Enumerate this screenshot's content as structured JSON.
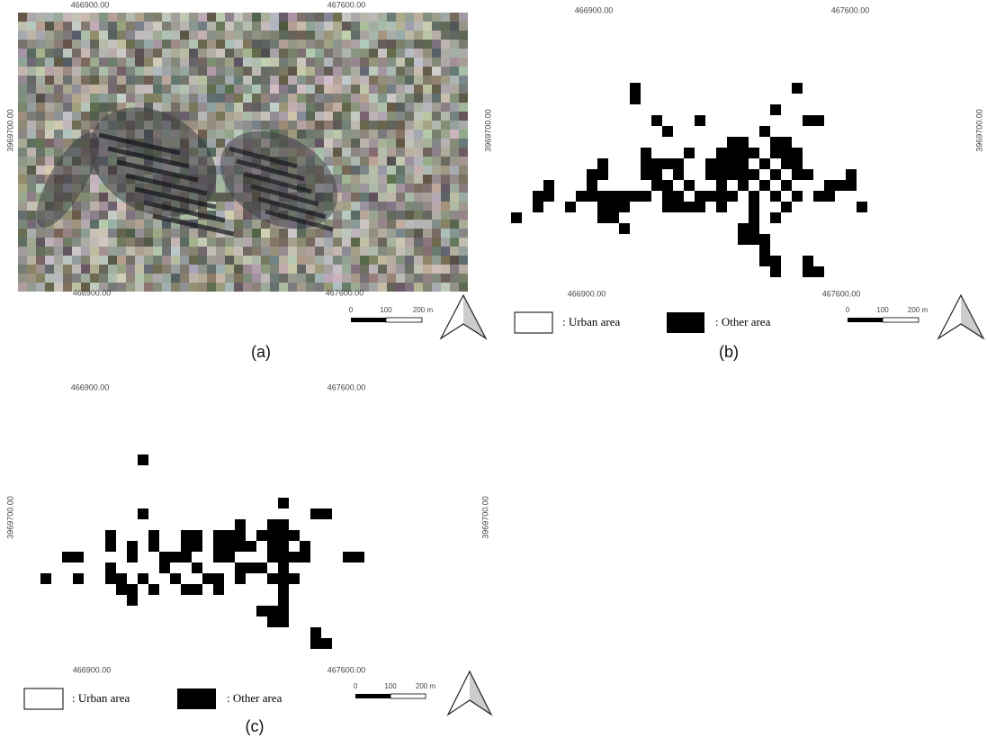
{
  "panels": [
    {
      "caption": "(a)",
      "x_top": [
        "466900.00",
        "467600.00"
      ],
      "x_bottom": [
        "466900.00",
        "467600.00"
      ],
      "y_left": "3969700.00",
      "scale": [
        "0",
        "100",
        "200 m"
      ]
    },
    {
      "caption": "(b)",
      "x_top": [
        "466900.00",
        "467600.00"
      ],
      "x_bottom": [
        "466900.00",
        "467600.00"
      ],
      "y_left": "3969700.00",
      "y_right": "3969700.00",
      "scale": [
        "0",
        "100",
        "200 m"
      ],
      "legend": [
        ": Urban area",
        ": Other area"
      ]
    },
    {
      "caption": "(c)",
      "x_top": [
        "466900.00",
        "467600.00"
      ],
      "x_bottom": [
        "466900.00",
        "467600.00"
      ],
      "y_left": "3969700.00",
      "y_right": "3969700.00",
      "scale": [
        "0",
        "100",
        "200 m"
      ],
      "legend": [
        ": Urban area",
        ": Other area"
      ]
    }
  ]
}
